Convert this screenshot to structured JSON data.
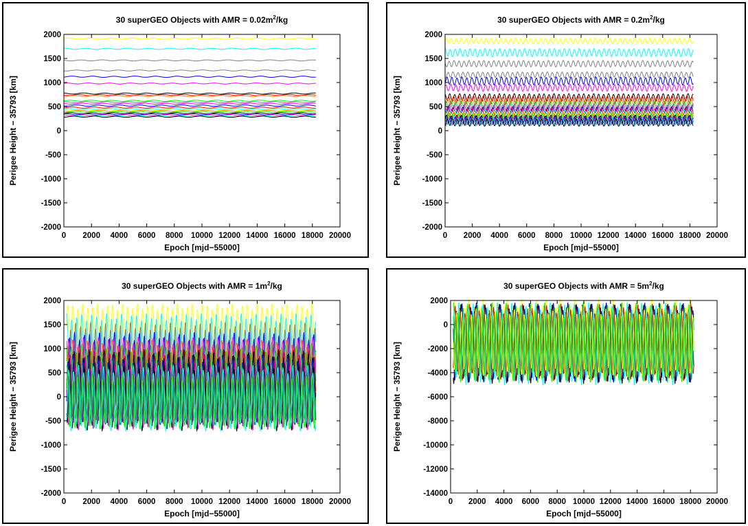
{
  "chart_data": [
    {
      "type": "line",
      "title_main": "30 superGEO Objects with AMR = 0.02m",
      "title_sup": "2",
      "title_tail": "/kg",
      "xlabel": "Epoch [mjd−55000]",
      "ylabel": "Perigee Height − 35793 [km]",
      "xlim": [
        0,
        20000
      ],
      "ylim": [
        -2000,
        2000
      ],
      "xticks": [
        0,
        2000,
        4000,
        6000,
        8000,
        10000,
        12000,
        14000,
        16000,
        18000,
        20000
      ],
      "yticks": [
        -2000,
        -1500,
        -1000,
        -500,
        0,
        500,
        1000,
        1500,
        2000
      ],
      "x_range": [
        0,
        18250
      ],
      "oscillation_count": 12,
      "series": [
        {
          "color": "#ffff00",
          "center": 1910,
          "amplitude": 12
        },
        {
          "color": "#00ffff",
          "center": 1700,
          "amplitude": 12
        },
        {
          "color": "#808080",
          "center": 1460,
          "amplitude": 10
        },
        {
          "color": "#808080",
          "center": 1250,
          "amplitude": 10
        },
        {
          "color": "#0000ff",
          "center": 1120,
          "amplitude": 12
        },
        {
          "color": "#ff00ff",
          "center": 980,
          "amplitude": 10
        },
        {
          "color": "#000000",
          "center": 770,
          "amplitude": 12
        },
        {
          "color": "#ff0000",
          "center": 740,
          "amplitude": 12
        },
        {
          "color": "#ff8000",
          "center": 720,
          "amplitude": 10
        },
        {
          "color": "#00ff00",
          "center": 620,
          "amplitude": 12
        },
        {
          "color": "#808080",
          "center": 590,
          "amplitude": 12
        },
        {
          "color": "#ff00ff",
          "center": 560,
          "amplitude": 10
        },
        {
          "color": "#0000ff",
          "center": 520,
          "amplitude": 12
        },
        {
          "color": "#ff0000",
          "center": 480,
          "amplitude": 12
        },
        {
          "color": "#00ffff",
          "center": 450,
          "amplitude": 10
        },
        {
          "color": "#ffff00",
          "center": 430,
          "amplitude": 12
        },
        {
          "color": "#ff8000",
          "center": 410,
          "amplitude": 12
        },
        {
          "color": "#00ff00",
          "center": 390,
          "amplitude": 12
        },
        {
          "color": "#000000",
          "center": 360,
          "amplitude": 12
        },
        {
          "color": "#0000ff",
          "center": 340,
          "amplitude": 12
        },
        {
          "color": "#ff00ff",
          "center": 320,
          "amplitude": 12
        },
        {
          "color": "#00ffff",
          "center": 300,
          "amplitude": 12
        },
        {
          "color": "#000000",
          "center": 290,
          "amplitude": 12
        }
      ]
    },
    {
      "type": "line",
      "title_main": "30 superGEO Objects with AMR = 0.2m",
      "title_sup": "2",
      "title_tail": "/kg",
      "xlabel": "Epoch [mjd−55000]",
      "ylabel": "Perigee Height − 35793 [km]",
      "xlim": [
        0,
        20000
      ],
      "ylim": [
        -2000,
        2000
      ],
      "xticks": [
        0,
        2000,
        4000,
        6000,
        8000,
        10000,
        12000,
        14000,
        16000,
        18000,
        20000
      ],
      "yticks": [
        -2000,
        -1500,
        -1000,
        -500,
        0,
        500,
        1000,
        1500,
        2000
      ],
      "x_range": [
        0,
        18250
      ],
      "oscillation_count": 50,
      "series": [
        {
          "color": "#ffff00",
          "center": 1860,
          "amplitude": 55
        },
        {
          "color": "#00ffff",
          "center": 1620,
          "amplitude": 75
        },
        {
          "color": "#808080",
          "center": 1390,
          "amplitude": 60
        },
        {
          "color": "#808080",
          "center": 1160,
          "amplitude": 55
        },
        {
          "color": "#0000ff",
          "center": 1030,
          "amplitude": 75
        },
        {
          "color": "#ff00ff",
          "center": 890,
          "amplitude": 65
        },
        {
          "color": "#000000",
          "center": 690,
          "amplitude": 70
        },
        {
          "color": "#ff0000",
          "center": 640,
          "amplitude": 75
        },
        {
          "color": "#ff8000",
          "center": 600,
          "amplitude": 65
        },
        {
          "color": "#00ff00",
          "center": 530,
          "amplitude": 75
        },
        {
          "color": "#808080",
          "center": 500,
          "amplitude": 70
        },
        {
          "color": "#ff00ff",
          "center": 460,
          "amplitude": 70
        },
        {
          "color": "#0000ff",
          "center": 420,
          "amplitude": 70
        },
        {
          "color": "#ff0000",
          "center": 380,
          "amplitude": 75
        },
        {
          "color": "#00ffff",
          "center": 350,
          "amplitude": 70
        },
        {
          "color": "#ffff00",
          "center": 320,
          "amplitude": 70
        },
        {
          "color": "#ff8000",
          "center": 300,
          "amplitude": 75
        },
        {
          "color": "#00ff00",
          "center": 270,
          "amplitude": 75
        },
        {
          "color": "#000000",
          "center": 240,
          "amplitude": 75
        },
        {
          "color": "#0000ff",
          "center": 220,
          "amplitude": 75
        },
        {
          "color": "#ff00ff",
          "center": 200,
          "amplitude": 75
        },
        {
          "color": "#00ffff",
          "center": 180,
          "amplitude": 75
        },
        {
          "color": "#000000",
          "center": 170,
          "amplitude": 70
        }
      ]
    },
    {
      "type": "line",
      "title_main": "30 superGEO Objects with AMR = 1m",
      "title_sup": "2",
      "title_tail": "/kg",
      "xlabel": "Epoch [mjd−55000]",
      "ylabel": "Perigee Height − 35793 [km]",
      "xlim": [
        0,
        20000
      ],
      "ylim": [
        -2000,
        2000
      ],
      "xticks": [
        0,
        2000,
        4000,
        6000,
        8000,
        10000,
        12000,
        14000,
        16000,
        18000,
        20000
      ],
      "yticks": [
        -2000,
        -1500,
        -1000,
        -500,
        0,
        500,
        1000,
        1500,
        2000
      ],
      "x_range": [
        200,
        18250
      ],
      "oscillation_count": 50,
      "series": [
        {
          "color": "#ffff00",
          "center": 1450,
          "amplitude": 420
        },
        {
          "color": "#00ffff",
          "center": 1150,
          "amplitude": 500
        },
        {
          "color": "#808080",
          "center": 950,
          "amplitude": 520
        },
        {
          "color": "#0000ff",
          "center": 700,
          "amplitude": 560
        },
        {
          "color": "#ff00ff",
          "center": 600,
          "amplitude": 560
        },
        {
          "color": "#ff8000",
          "center": 500,
          "amplitude": 600
        },
        {
          "color": "#00ff00",
          "center": 400,
          "amplitude": 600
        },
        {
          "color": "#ff0000",
          "center": 300,
          "amplitude": 620
        },
        {
          "color": "#000000",
          "center": 250,
          "amplitude": 640
        },
        {
          "color": "#0000ff",
          "center": 150,
          "amplitude": 640
        },
        {
          "color": "#00ff00",
          "center": 100,
          "amplitude": 650
        },
        {
          "color": "#ff00ff",
          "center": 50,
          "amplitude": 650
        },
        {
          "color": "#000000",
          "center": 0,
          "amplitude": 620
        },
        {
          "color": "#00ffff",
          "center": -30,
          "amplitude": 600
        },
        {
          "color": "#00ff00",
          "center": -100,
          "amplitude": 500
        }
      ]
    },
    {
      "type": "line",
      "title_main": "30 superGEO Objects with AMR = 5m",
      "title_sup": "2",
      "title_tail": "/kg",
      "xlabel": "Epoch [mjd−55000]",
      "ylabel": "Perigee Height − 35793 [km]",
      "xlim": [
        0,
        20000
      ],
      "ylim": [
        -14000,
        2000
      ],
      "xticks": [
        0,
        2000,
        4000,
        6000,
        8000,
        10000,
        12000,
        14000,
        16000,
        18000,
        20000
      ],
      "yticks": [
        -14000,
        -12000,
        -10000,
        -8000,
        -6000,
        -4000,
        -2000,
        0,
        2000
      ],
      "x_range": [
        200,
        18250
      ],
      "oscillation_count": 50,
      "series": [
        {
          "color": "#ffff00",
          "center": -1300,
          "amplitude": 3000
        },
        {
          "color": "#00ff00",
          "center": -1500,
          "amplitude": 2900
        },
        {
          "color": "#0000ff",
          "center": -1500,
          "amplitude": 2900
        },
        {
          "color": "#000000",
          "center": -1600,
          "amplitude": 2900
        },
        {
          "color": "#ff0000",
          "center": -1500,
          "amplitude": 2800
        },
        {
          "color": "#00ffff",
          "center": -1600,
          "amplitude": 3000
        },
        {
          "color": "#00ff00",
          "center": -1800,
          "amplitude": 2500
        },
        {
          "color": "#ffff00",
          "center": -1400,
          "amplitude": 2600
        }
      ]
    }
  ]
}
